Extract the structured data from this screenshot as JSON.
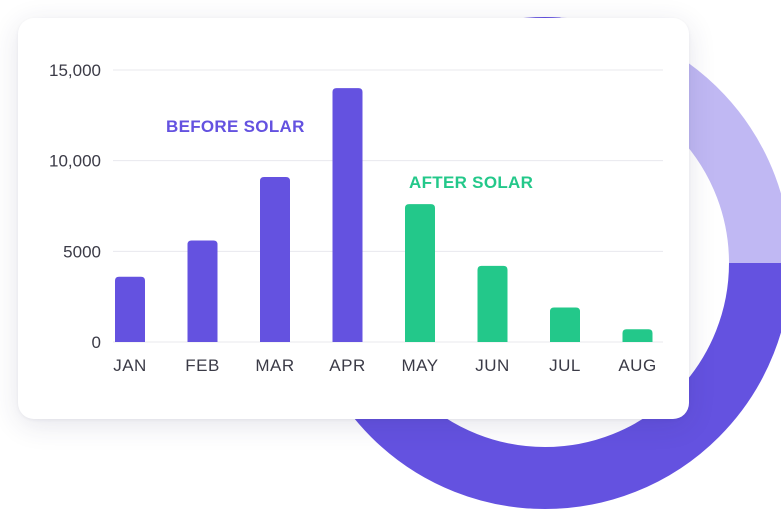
{
  "chart_data": {
    "type": "bar",
    "categories": [
      "JAN",
      "FEB",
      "MAR",
      "APR",
      "MAY",
      "JUN",
      "JUL",
      "AUG"
    ],
    "values": [
      3600,
      5600,
      9100,
      14000,
      7600,
      4200,
      1900,
      700
    ],
    "groups": [
      "before",
      "before",
      "before",
      "before",
      "after",
      "after",
      "after",
      "after"
    ],
    "ylim": [
      0,
      15000
    ],
    "yticks": [
      {
        "value": 0,
        "label": "0"
      },
      {
        "value": 5000,
        "label": "5000"
      },
      {
        "value": 10000,
        "label": "10,000"
      },
      {
        "value": 15000,
        "label": "15,000"
      }
    ],
    "annotations": {
      "before": "BEFORE SOLAR",
      "after": "AFTER SOLAR"
    },
    "grid": true,
    "colors": {
      "before": "#6452E0",
      "after": "#23C88A",
      "grid": "#E8E8EE"
    }
  },
  "background_ring": {
    "segments": [
      {
        "fraction": 0.76,
        "color": "#6452E0"
      },
      {
        "fraction": 0.24,
        "color": "#C0B8F3"
      }
    ]
  }
}
